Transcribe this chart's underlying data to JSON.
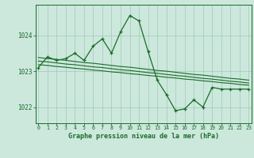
{
  "x": [
    0,
    1,
    2,
    3,
    4,
    5,
    6,
    7,
    8,
    9,
    10,
    11,
    12,
    13,
    14,
    15,
    16,
    17,
    18,
    19,
    20,
    21,
    22,
    23
  ],
  "pressure": [
    1023.1,
    1023.4,
    1023.3,
    1023.35,
    1023.5,
    1023.3,
    1023.7,
    1023.9,
    1023.5,
    1024.1,
    1024.55,
    1024.4,
    1023.55,
    1022.75,
    1022.35,
    1021.9,
    1021.95,
    1022.2,
    1022.0,
    1022.55,
    1022.5,
    1022.5,
    1022.5,
    1022.5
  ],
  "trend1": [
    1023.38,
    1023.35,
    1023.33,
    1023.3,
    1023.27,
    1023.24,
    1023.22,
    1023.19,
    1023.16,
    1023.13,
    1023.11,
    1023.08,
    1023.05,
    1023.02,
    1023.0,
    1022.97,
    1022.94,
    1022.91,
    1022.89,
    1022.86,
    1022.83,
    1022.8,
    1022.78,
    1022.75
  ],
  "trend2": [
    1023.28,
    1023.26,
    1023.23,
    1023.2,
    1023.18,
    1023.15,
    1023.12,
    1023.1,
    1023.07,
    1023.04,
    1023.02,
    1022.99,
    1022.96,
    1022.94,
    1022.91,
    1022.88,
    1022.86,
    1022.83,
    1022.8,
    1022.78,
    1022.75,
    1022.72,
    1022.7,
    1022.67
  ],
  "trend3": [
    1023.18,
    1023.16,
    1023.13,
    1023.11,
    1023.08,
    1023.06,
    1023.03,
    1023.01,
    1022.98,
    1022.96,
    1022.93,
    1022.91,
    1022.88,
    1022.86,
    1022.83,
    1022.81,
    1022.78,
    1022.76,
    1022.73,
    1022.71,
    1022.68,
    1022.66,
    1022.63,
    1022.61
  ],
  "line_color": "#1a6b2a",
  "bg_color": "#cce8dc",
  "grid_color": "#a0c8b8",
  "xlabel": "Graphe pression niveau de la mer (hPa)",
  "yticks": [
    1022,
    1023,
    1024
  ],
  "xticks": [
    0,
    1,
    2,
    3,
    4,
    5,
    6,
    7,
    8,
    9,
    10,
    11,
    12,
    13,
    14,
    15,
    16,
    17,
    18,
    19,
    20,
    21,
    22,
    23
  ],
  "ylim": [
    1021.55,
    1024.85
  ],
  "xlim": [
    -0.3,
    23.3
  ]
}
